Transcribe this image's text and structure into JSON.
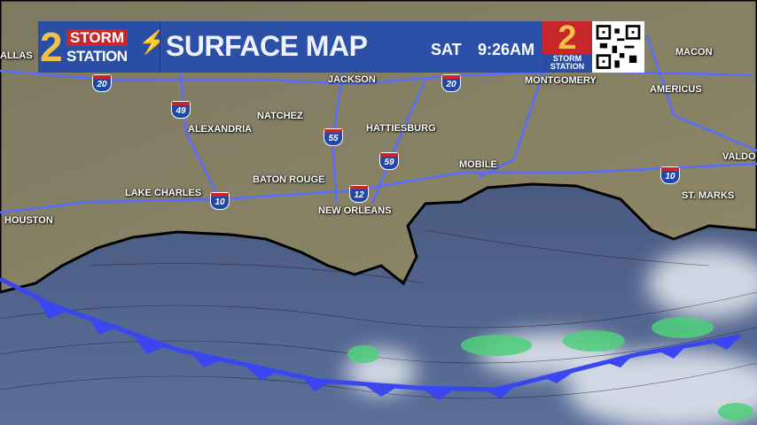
{
  "header": {
    "logo": {
      "number": "2",
      "line1": "STORM",
      "line2": "STATION"
    },
    "title": "SURFACE MAP",
    "day": "SAT",
    "time": "9:26AM",
    "brand": {
      "number": "2",
      "line1": "STORM",
      "line2": "STATION"
    },
    "qr_code": "qr-code-icon"
  },
  "map": {
    "cities": [
      "ALLAS",
      "JACKSON",
      "MONTGOMERY",
      "MACON",
      "AMERICUS",
      "NATCHEZ",
      "ALEXANDRIA",
      "HATTIESBURG",
      "MOBILE",
      "VALDO",
      "BATON ROUGE",
      "LAKE CHARLES",
      "ST. MARKS",
      "NEW ORLEANS",
      "HOUSTON"
    ],
    "interstates": [
      "20",
      "20",
      "49",
      "55",
      "59",
      "12",
      "10",
      "10"
    ],
    "colors": {
      "land": "#857f62",
      "water": "#475a82",
      "roads": "#4a5cff",
      "front": "#3a46f0",
      "precip": "#4fd07a"
    },
    "front_type": "cold front"
  }
}
